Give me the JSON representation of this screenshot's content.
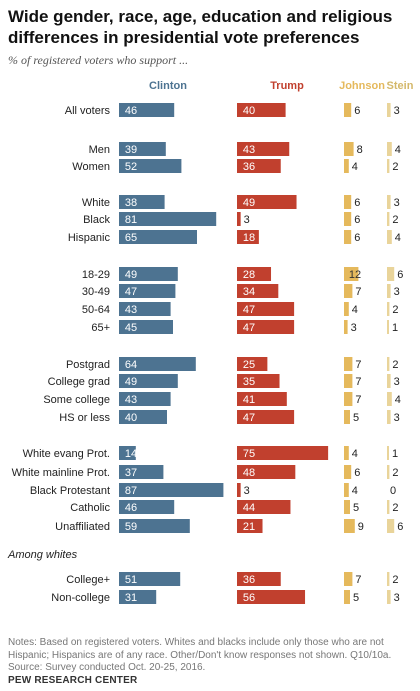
{
  "title": "Wide gender, race, age, education and religious differences in presidential vote preferences",
  "subtitle": "% of registered voters who support ...",
  "notes": "Notes: Based on registered voters. Whites and blacks include only those who are not Hispanic; Hispanics are of any race. Other/Don't know responses not shown. Q10/10a. Source: Survey conducted Oct. 20-25, 2016.",
  "source": "PEW RESEARCH CENTER",
  "colors": {
    "Clinton": "#4d7391",
    "Trump": "#c1402e",
    "Johnson": "#e5b95c",
    "Stein": "#e9d49a"
  },
  "chart_data": {
    "type": "bar",
    "orientation": "horizontal",
    "series": [
      {
        "name": "Clinton",
        "values": [
          46,
          39,
          52,
          38,
          81,
          65,
          49,
          47,
          43,
          45,
          64,
          49,
          43,
          40,
          14,
          37,
          87,
          46,
          59,
          51,
          31
        ]
      },
      {
        "name": "Trump",
        "values": [
          40,
          43,
          36,
          49,
          3,
          18,
          28,
          34,
          47,
          47,
          25,
          35,
          41,
          47,
          75,
          48,
          3,
          44,
          21,
          36,
          56
        ]
      },
      {
        "name": "Johnson",
        "values": [
          6,
          8,
          4,
          6,
          6,
          6,
          12,
          7,
          4,
          3,
          7,
          7,
          7,
          5,
          4,
          6,
          4,
          5,
          9,
          7,
          5
        ]
      },
      {
        "name": "Stein",
        "values": [
          3,
          4,
          2,
          3,
          2,
          4,
          6,
          3,
          2,
          1,
          2,
          3,
          4,
          3,
          1,
          2,
          0,
          2,
          6,
          2,
          3
        ]
      }
    ],
    "categories": [
      "All voters",
      "Men",
      "Women",
      "White",
      "Black",
      "Hispanic",
      "18-29",
      "30-49",
      "50-64",
      "65+",
      "Postgrad",
      "College grad",
      "Some college",
      "HS or less",
      "White evang Prot.",
      "White mainline Prot.",
      "Black Protestant",
      "Catholic",
      "Unaffiliated",
      "College+",
      "Non-college"
    ],
    "section_label": "Among whites",
    "grid": false,
    "legend": "top"
  }
}
